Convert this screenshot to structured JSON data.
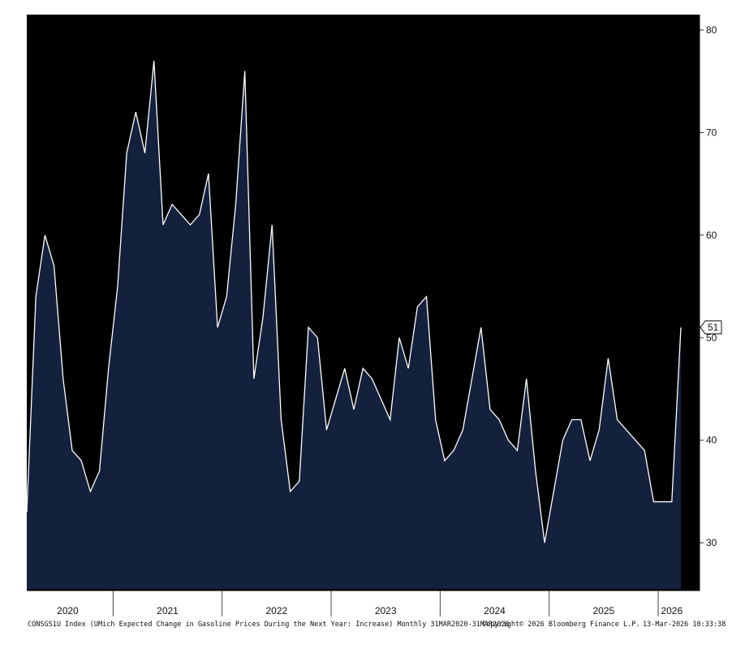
{
  "chart_data": {
    "type": "area",
    "ylim": [
      25.5,
      81.5
    ],
    "yticks": [
      30,
      40,
      50,
      60,
      70,
      80
    ],
    "x_year_labels": [
      "2020",
      "2021",
      "2022",
      "2023",
      "2024",
      "2025",
      "2026"
    ],
    "x_start": "2020-03",
    "x_end": "2026-03",
    "values": [
      33,
      54,
      60,
      57,
      46,
      39,
      38,
      35,
      37,
      47,
      55,
      68,
      72,
      68,
      77,
      61,
      63,
      62,
      61,
      62,
      66,
      51,
      54,
      63,
      76,
      46,
      52,
      61,
      42,
      35,
      36,
      51,
      50,
      41,
      44,
      47,
      43,
      47,
      46,
      44,
      42,
      50,
      47,
      53,
      54,
      42,
      38,
      39,
      41,
      46,
      51,
      43,
      42,
      40,
      39,
      46,
      37,
      30,
      35,
      40,
      42,
      42,
      38,
      41,
      48,
      42,
      41,
      40,
      39,
      34,
      34,
      34,
      51
    ],
    "last_value_label": "51",
    "colors": {
      "area": "#14213d",
      "line": "#ffffff",
      "background": "#000000",
      "axis_text": "#111111"
    }
  },
  "footer": {
    "description": "CONSGS1U Index (UMich Expected Change in Gasoline Prices During the Next Year: Increase) Monthly 31MAR2020-31MAR2026",
    "copyright": "Copyright© 2026 Bloomberg Finance L.P.",
    "timestamp": "13-Mar-2026 10:33:38"
  }
}
